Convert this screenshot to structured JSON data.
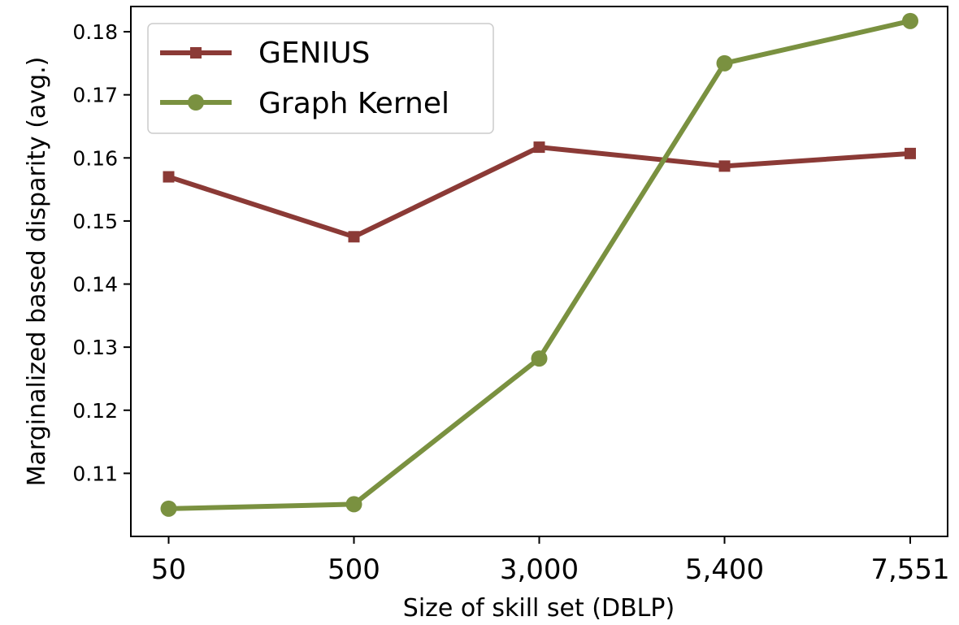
{
  "chart_data": {
    "type": "line",
    "title": "",
    "xlabel": "Size of skill set (DBLP)",
    "ylabel": "Marginalized based disparity (avg.)",
    "categories": [
      "50",
      "500",
      "3,000",
      "5,400",
      "7,551"
    ],
    "ylim": [
      0.1,
      0.184
    ],
    "yticks": [
      "0.11",
      "0.12",
      "0.13",
      "0.14",
      "0.15",
      "0.16",
      "0.17",
      "0.18"
    ],
    "ytick_values": [
      0.11,
      0.12,
      0.13,
      0.14,
      0.15,
      0.16,
      0.17,
      0.18
    ],
    "grid": false,
    "legend_position": "top-left",
    "series": [
      {
        "name": "GENIUS",
        "values": [
          0.157,
          0.1475,
          0.1617,
          0.1587,
          0.1607
        ],
        "color": "#8b3a36",
        "marker": "square"
      },
      {
        "name": "Graph Kernel",
        "values": [
          0.1044,
          0.1051,
          0.1282,
          0.175,
          0.1817
        ],
        "color": "#7a9140",
        "marker": "circle"
      }
    ]
  }
}
